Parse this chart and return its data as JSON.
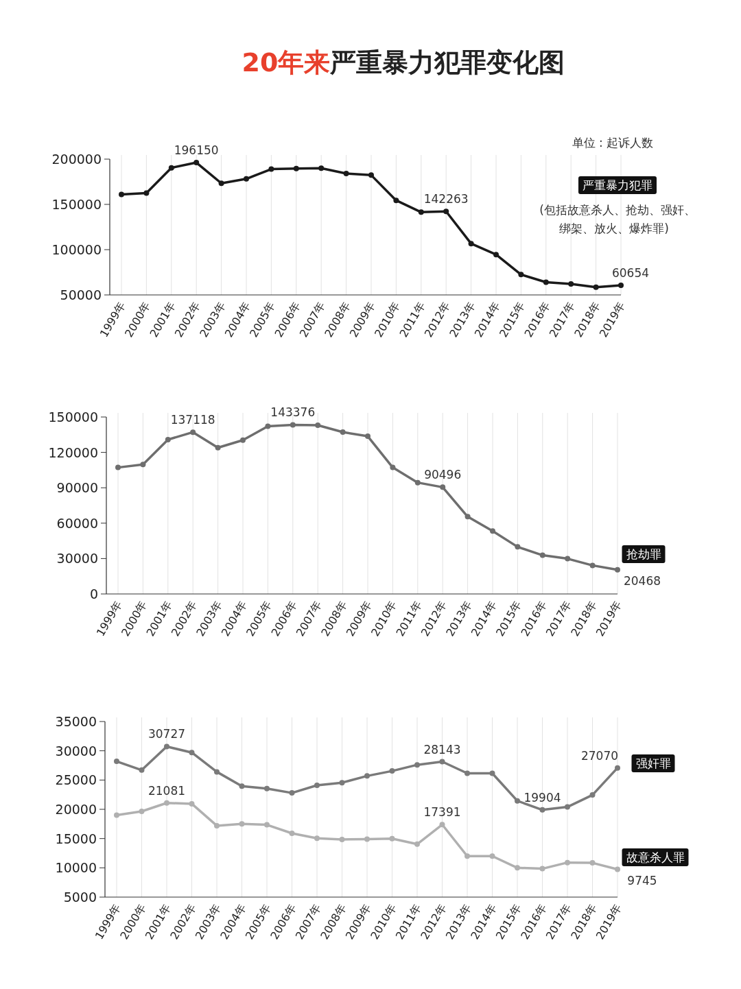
{
  "chart_data": [
    {
      "type": "line",
      "title": "20年来严重暴力犯罪变化图",
      "categories": [
        "1999年",
        "2000年",
        "2001年",
        "2002年",
        "2003年",
        "2004年",
        "2005年",
        "2006年",
        "2007年",
        "2008年",
        "2009年",
        "2010年",
        "2011年",
        "2012年",
        "2013年",
        "2014年",
        "2015年",
        "2016年",
        "2017年",
        "2018年",
        "2019年"
      ],
      "series": [
        {
          "name": "严重暴力犯罪",
          "color": "#1a1a1a",
          "values": [
            161000,
            162500,
            190400,
            196150,
            173300,
            178200,
            189000,
            189500,
            190000,
            184100,
            182300,
            154400,
            141400,
            142263,
            106700,
            94600,
            72500,
            64000,
            62200,
            58600,
            60654
          ],
          "value_labels": [
            null,
            null,
            null,
            "196150",
            null,
            null,
            null,
            null,
            null,
            null,
            null,
            null,
            null,
            "142263",
            null,
            null,
            null,
            null,
            null,
            null,
            "60654"
          ]
        }
      ],
      "ylim": [
        50000,
        200000
      ],
      "yticks": [
        50000,
        100000,
        150000,
        200000
      ],
      "grid": "x",
      "marker": "circle",
      "legend": "right",
      "annotations": [
        "单位 : 起诉人数",
        "(包括故意杀人、抢劫、强奸、",
        "绑架、放火、爆炸罪)"
      ]
    },
    {
      "type": "line",
      "categories": [
        "1999年",
        "2000年",
        "2001年",
        "2002年",
        "2003年",
        "2004年",
        "2005年",
        "2006年",
        "2007年",
        "2008年",
        "2009年",
        "2010年",
        "2011年",
        "2012年",
        "2013年",
        "2014年",
        "2015年",
        "2016年",
        "2017年",
        "2018年",
        "2019年"
      ],
      "series": [
        {
          "name": "抢劫罪",
          "color": "#6e6e6e",
          "values": [
            107200,
            109700,
            130800,
            137118,
            124000,
            130400,
            142100,
            143376,
            143000,
            137200,
            133700,
            107200,
            94400,
            90496,
            65500,
            53400,
            39900,
            32800,
            29900,
            24200,
            20468
          ],
          "value_labels": [
            null,
            null,
            null,
            "137118",
            null,
            null,
            null,
            "143376",
            null,
            null,
            null,
            null,
            null,
            "90496",
            null,
            null,
            null,
            null,
            null,
            null,
            "20468"
          ]
        }
      ],
      "ylim": [
        0,
        150000
      ],
      "yticks": [
        0,
        30000,
        60000,
        90000,
        120000,
        150000
      ],
      "grid": "x",
      "marker": "circle",
      "legend": "right"
    },
    {
      "type": "line",
      "categories": [
        "1999年",
        "2000年",
        "2001年",
        "2002年",
        "2003年",
        "2004年",
        "2005年",
        "2006年",
        "2007年",
        "2008年",
        "2009年",
        "2010年",
        "2011年",
        "2012年",
        "2013年",
        "2014年",
        "2015年",
        "2016年",
        "2017年",
        "2018年",
        "2019年"
      ],
      "series": [
        {
          "name": "强奸罪",
          "color": "#7a7a7a",
          "values": [
            28200,
            26700,
            30727,
            29700,
            26400,
            23950,
            23550,
            22800,
            24100,
            24550,
            25700,
            26550,
            27600,
            28143,
            26150,
            26150,
            21450,
            19904,
            20400,
            22450,
            27070
          ],
          "value_labels": [
            null,
            null,
            "30727",
            null,
            null,
            null,
            null,
            null,
            null,
            null,
            null,
            null,
            null,
            "28143",
            null,
            null,
            null,
            "19904",
            null,
            null,
            "27070"
          ]
        },
        {
          "name": "故意杀人罪",
          "color": "#b0b0b0",
          "values": [
            19000,
            19650,
            21081,
            20950,
            17200,
            17500,
            17350,
            15900,
            15050,
            14850,
            14900,
            15000,
            14050,
            17391,
            12000,
            12000,
            10000,
            9850,
            10900,
            10850,
            9745
          ],
          "value_labels": [
            null,
            null,
            "21081",
            null,
            null,
            null,
            null,
            null,
            null,
            null,
            null,
            null,
            null,
            "17391",
            null,
            null,
            null,
            null,
            null,
            null,
            "9745"
          ]
        }
      ],
      "ylim": [
        5000,
        35000
      ],
      "yticks": [
        5000,
        10000,
        15000,
        20000,
        25000,
        30000,
        35000
      ],
      "grid": "x",
      "marker": "circle",
      "legend": "right"
    }
  ]
}
